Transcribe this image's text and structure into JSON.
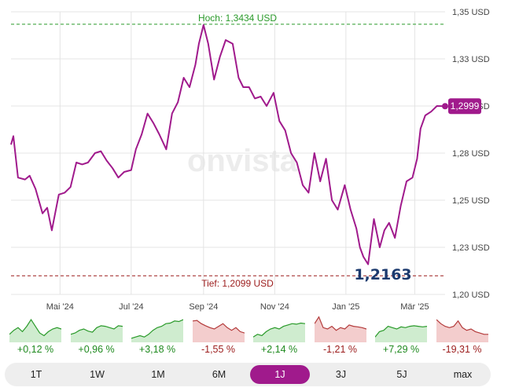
{
  "chart_data": {
    "type": "line",
    "watermark": "onvista",
    "y_ticks": [
      "1,20 USD",
      "1,23 USD",
      "1,25 USD",
      "1,28 USD",
      "1,30 USD",
      "1,33 USD",
      "1,35 USD"
    ],
    "y_tick_values": [
      1.2,
      1.225,
      1.25,
      1.275,
      1.3,
      1.325,
      1.35
    ],
    "ylim": [
      1.2,
      1.35
    ],
    "x_ticks": [
      "Mai '24",
      "Jul '24",
      "Sep '24",
      "Nov '24",
      "Jan '25",
      "Mär '25"
    ],
    "x_tick_dates": [
      "2024-05-01",
      "2024-07-01",
      "2024-09-01",
      "2024-11-01",
      "2025-01-01",
      "2025-03-01"
    ],
    "xlim": [
      "2024-03-20",
      "2025-03-27"
    ],
    "high": {
      "label": "Hoch: 1,3434 USD",
      "value": 1.3434
    },
    "low": {
      "label": "Tief: 1,2099 USD",
      "value": 1.2099
    },
    "last": {
      "label": "1,2999",
      "value": 1.2999
    },
    "annotation": {
      "label": "1,2163",
      "value": 1.2163
    },
    "colors": {
      "line": "#a01a8c",
      "high": "#2a9a2a",
      "low": "#9c1c1c",
      "grid": "#e4e4e4",
      "annotation": "#1c3a6e"
    },
    "grid": true,
    "series": [
      {
        "x": [
          "2024-03-20",
          "2024-03-22",
          "2024-03-26",
          "2024-04-01",
          "2024-04-05",
          "2024-04-10",
          "2024-04-16",
          "2024-04-20",
          "2024-04-24",
          "2024-04-30",
          "2024-05-05",
          "2024-05-10",
          "2024-05-15",
          "2024-05-20",
          "2024-05-25",
          "2024-05-31",
          "2024-06-05",
          "2024-06-10",
          "2024-06-15",
          "2024-06-20",
          "2024-06-25",
          "2024-07-01",
          "2024-07-05",
          "2024-07-10",
          "2024-07-15",
          "2024-07-20",
          "2024-07-25",
          "2024-07-31",
          "2024-08-05",
          "2024-08-10",
          "2024-08-15",
          "2024-08-20",
          "2024-08-25",
          "2024-08-28",
          "2024-09-01",
          "2024-09-05",
          "2024-09-10",
          "2024-09-15",
          "2024-09-20",
          "2024-09-26",
          "2024-10-01",
          "2024-10-05",
          "2024-10-10",
          "2024-10-15",
          "2024-10-20",
          "2024-10-25",
          "2024-10-31",
          "2024-11-05",
          "2024-11-10",
          "2024-11-15",
          "2024-11-20",
          "2024-11-25",
          "2024-11-30",
          "2024-12-05",
          "2024-12-10",
          "2024-12-15",
          "2024-12-20",
          "2024-12-25",
          "2024-12-31",
          "2025-01-05",
          "2025-01-10",
          "2025-01-13",
          "2025-01-16",
          "2025-01-20",
          "2025-01-25",
          "2025-01-30",
          "2025-02-03",
          "2025-02-07",
          "2025-02-12",
          "2025-02-17",
          "2025-02-22",
          "2025-02-27",
          "2025-03-03",
          "2025-03-06",
          "2025-03-10",
          "2025-03-15",
          "2025-03-20",
          "2025-03-27"
        ],
        "y": [
          1.2795,
          1.284,
          1.262,
          1.261,
          1.263,
          1.256,
          1.243,
          1.246,
          1.234,
          1.253,
          1.254,
          1.257,
          1.27,
          1.269,
          1.27,
          1.275,
          1.276,
          1.271,
          1.267,
          1.262,
          1.265,
          1.266,
          1.277,
          1.285,
          1.296,
          1.291,
          1.285,
          1.277,
          1.296,
          1.302,
          1.315,
          1.31,
          1.322,
          1.333,
          1.343,
          1.333,
          1.314,
          1.326,
          1.335,
          1.333,
          1.315,
          1.31,
          1.31,
          1.304,
          1.305,
          1.3,
          1.307,
          1.292,
          1.287,
          1.275,
          1.27,
          1.258,
          1.254,
          1.275,
          1.26,
          1.272,
          1.25,
          1.245,
          1.258,
          1.245,
          1.235,
          1.225,
          1.22,
          1.216,
          1.24,
          1.225,
          1.234,
          1.238,
          1.23,
          1.247,
          1.26,
          1.262,
          1.272,
          1.288,
          1.295,
          1.297,
          1.3,
          1.2999
        ]
      }
    ]
  },
  "mini_charts": [
    {
      "change": "+0,12 %",
      "up": true,
      "values": [
        0.3,
        0.45,
        0.55,
        0.4,
        0.6,
        0.85,
        0.6,
        0.35,
        0.25,
        0.4,
        0.5,
        0.55,
        0.5
      ]
    },
    {
      "change": "+0,96 %",
      "up": true,
      "values": [
        0.3,
        0.35,
        0.45,
        0.5,
        0.42,
        0.38,
        0.55,
        0.62,
        0.6,
        0.55,
        0.5,
        0.62,
        0.6
      ]
    },
    {
      "change": "+3,18 %",
      "up": true,
      "values": [
        0.15,
        0.2,
        0.25,
        0.2,
        0.3,
        0.45,
        0.55,
        0.6,
        0.7,
        0.72,
        0.8,
        0.78,
        0.85
      ]
    },
    {
      "change": "-1,55 %",
      "up": false,
      "values": [
        0.8,
        0.82,
        0.7,
        0.62,
        0.55,
        0.5,
        0.6,
        0.7,
        0.55,
        0.45,
        0.55,
        0.4,
        0.35
      ]
    },
    {
      "change": "+2,14 %",
      "up": true,
      "values": [
        0.2,
        0.3,
        0.25,
        0.4,
        0.5,
        0.55,
        0.5,
        0.6,
        0.65,
        0.7,
        0.68,
        0.72,
        0.7
      ]
    },
    {
      "change": "-1,21 %",
      "up": false,
      "values": [
        0.7,
        0.95,
        0.55,
        0.5,
        0.6,
        0.45,
        0.55,
        0.5,
        0.65,
        0.6,
        0.58,
        0.55,
        0.5
      ]
    },
    {
      "change": "+7,29 %",
      "up": true,
      "values": [
        0.2,
        0.4,
        0.45,
        0.6,
        0.55,
        0.5,
        0.58,
        0.55,
        0.6,
        0.62,
        0.6,
        0.58,
        0.6
      ]
    },
    {
      "change": "-19,31 %",
      "up": false,
      "values": [
        0.85,
        0.7,
        0.6,
        0.55,
        0.6,
        0.8,
        0.55,
        0.45,
        0.5,
        0.4,
        0.35,
        0.3,
        0.3
      ]
    }
  ],
  "mini_colors": {
    "up_line": "#2a9a2a",
    "up_fill": "#cfeccf",
    "down_line": "#b33a3a",
    "down_fill": "#f3cdcd",
    "up_text": "#1f8a1f",
    "down_text": "#9c1c1c"
  },
  "tabs": [
    {
      "label": "1T",
      "active": false
    },
    {
      "label": "1W",
      "active": false
    },
    {
      "label": "1M",
      "active": false
    },
    {
      "label": "6M",
      "active": false
    },
    {
      "label": "1J",
      "active": true
    },
    {
      "label": "3J",
      "active": false
    },
    {
      "label": "5J",
      "active": false
    },
    {
      "label": "max",
      "active": false
    }
  ]
}
